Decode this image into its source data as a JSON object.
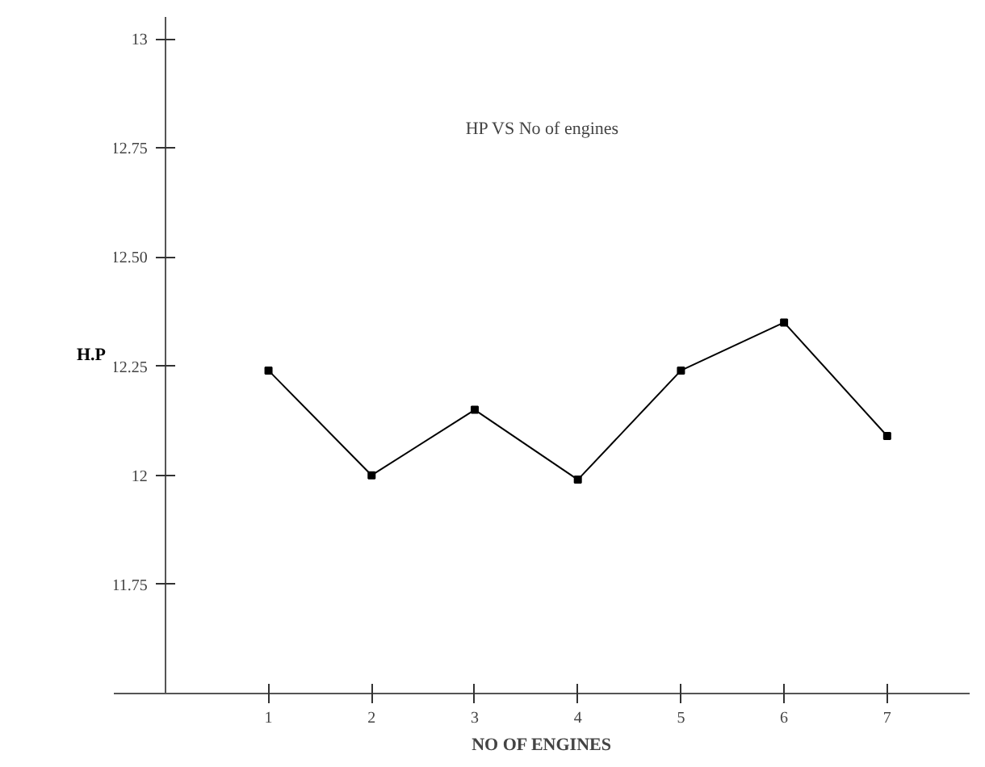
{
  "chart_data": {
    "type": "line",
    "title": "HP VS No of engines",
    "xlabel": "NO OF ENGINES",
    "ylabel": "H.P",
    "x": [
      1,
      2,
      3,
      4,
      5,
      6,
      7
    ],
    "series": [
      {
        "color": "#000000",
        "values": [
          12.24,
          12.0,
          12.15,
          11.99,
          12.24,
          12.35,
          12.09
        ]
      }
    ],
    "xlim": [
      -0.5,
      7.8
    ],
    "ylim": [
      11.5,
      13.05
    ],
    "xticks": [
      1,
      2,
      3,
      4,
      5,
      6,
      7
    ],
    "yticks": [
      {
        "value": 11.75,
        "label": "11.75"
      },
      {
        "value": 12,
        "label": "12"
      },
      {
        "value": 12.25,
        "label": "12.25"
      },
      {
        "value": 12.5,
        "label": "12.50"
      },
      {
        "value": 12.75,
        "label": "12.75"
      },
      {
        "value": 13,
        "label": "13"
      }
    ],
    "grid": false,
    "marker": "square",
    "line_style": "solid"
  }
}
